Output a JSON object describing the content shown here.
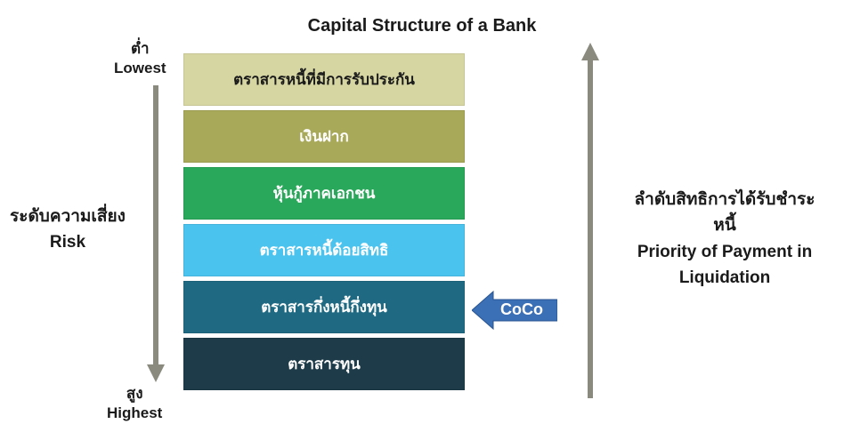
{
  "title": "Capital Structure of a Bank",
  "leftTop": {
    "th": "ต่ำ",
    "en": "Lowest"
  },
  "leftBottom": {
    "th": "สูง",
    "en": "Highest"
  },
  "leftDesc": {
    "th": "ระดับความเสี่ยง",
    "en": "Risk"
  },
  "rightDesc": {
    "th": "ลำดับสิทธิการได้รับชำระหนี้",
    "en": "Priority of Payment in Liquidation"
  },
  "coco": {
    "label": "CoCo",
    "color": "#3b6fb6"
  },
  "arrowColor": "#8b8a7f",
  "layers": [
    {
      "label": "ตราสารหนี้ที่มีการรับประกัน",
      "color": "#d6d6a3",
      "textDark": true
    },
    {
      "label": "เงินฝาก",
      "color": "#a9a95a",
      "textDark": false
    },
    {
      "label": "หุ้นกู้ภาคเอกชน",
      "color": "#29a75a",
      "textDark": false
    },
    {
      "label": "ตราสารหนี้ด้อยสิทธิ",
      "color": "#4bc3ef",
      "textDark": false
    },
    {
      "label": "ตราสารกึ่งหนี้กึ่งทุน",
      "color": "#1f6a82",
      "textDark": false
    },
    {
      "label": "ตราสารทุน",
      "color": "#1d3b49",
      "textDark": false
    }
  ]
}
